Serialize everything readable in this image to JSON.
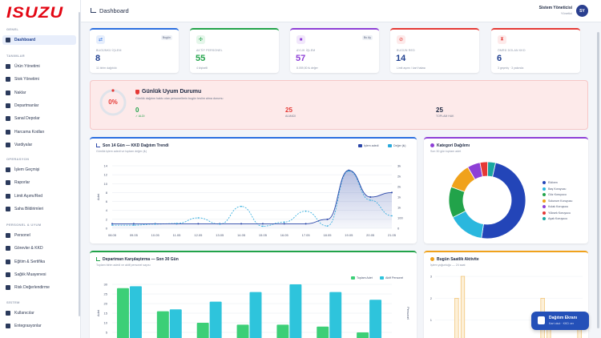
{
  "brand": {
    "logo": "ISUZU"
  },
  "header": {
    "title": "Dashboard",
    "user_name": "Sistem Yöneticisi",
    "user_role": "Yönetici",
    "avatar": "SY"
  },
  "sidebar": {
    "sections": [
      {
        "title": "GENEL",
        "items": [
          {
            "label": "Dashboard",
            "icon": "dashboard-icon",
            "active": true
          }
        ]
      },
      {
        "title": "TANIMLAR",
        "items": [
          {
            "label": "Ürün Yönetimi",
            "icon": "box-icon"
          },
          {
            "label": "Stok Yönetimi",
            "icon": "boxes-icon"
          },
          {
            "label": "Naklar",
            "icon": "list-icon"
          },
          {
            "label": "Departmanlar",
            "icon": "building-icon"
          },
          {
            "label": "Sanal Depolar",
            "icon": "warehouse-icon"
          },
          {
            "label": "Harcama Kodları",
            "icon": "code-icon"
          },
          {
            "label": "Vardiyalar",
            "icon": "clock-icon"
          }
        ]
      },
      {
        "title": "OPERASYON",
        "items": [
          {
            "label": "İşlem Geçmişi",
            "icon": "history-icon"
          },
          {
            "label": "Raporlar",
            "icon": "report-icon"
          },
          {
            "label": "Limit Aşımı/Red",
            "icon": "alert-icon"
          },
          {
            "label": "Saha Bildirimleri",
            "icon": "bell-icon"
          }
        ]
      },
      {
        "title": "PERSONEL & UYUM",
        "items": [
          {
            "label": "Personel",
            "icon": "users-icon"
          },
          {
            "label": "Görevler & KKD",
            "icon": "tasks-icon"
          },
          {
            "label": "Eğitim & Sertifika",
            "icon": "certificate-icon"
          },
          {
            "label": "Sağlık Muayenesi",
            "icon": "health-icon"
          },
          {
            "label": "Risk Değerlendirme",
            "icon": "warning-icon"
          }
        ]
      },
      {
        "title": "SİSTEM",
        "items": [
          {
            "label": "Kullanıcılar",
            "icon": "user-icon"
          },
          {
            "label": "Entegrasyonlar",
            "icon": "plug-icon"
          }
        ]
      }
    ]
  },
  "stats": [
    {
      "label": "BUGÜNKÜ İŞLEM",
      "value": "8",
      "sub": "11 birim dağıtıldı",
      "badge": "Bugün",
      "color": "#2b6fe0",
      "icon": "swap-icon",
      "glyph": "⇄",
      "icon_bg": "#e6eefc"
    },
    {
      "label": "AKTİF PERSONEL",
      "value": "55",
      "sub": "4 kişiselli",
      "badge": "",
      "color": "#22a34a",
      "icon": "users-icon",
      "glyph": "✣",
      "icon_bg": "#e5f6ea"
    },
    {
      "label": "AYLIK İŞLEM",
      "value": "57",
      "sub": "8.059,50 ₺ değer",
      "badge": "Bu Ay",
      "color": "#8e3fd6",
      "icon": "calendar-icon",
      "glyph": "■",
      "icon_bg": "#f1e7fb"
    },
    {
      "label": "BUGÜN RED",
      "value": "14",
      "sub": "Limit aşımı / kart hatası",
      "badge": "",
      "color": "#e53935",
      "icon": "ban-icon",
      "glyph": "⊘",
      "icon_bg": "#fdeaea"
    },
    {
      "label": "ÖMRÜ DOLAN KKD",
      "value": "6",
      "sub": "3 geçmiş · 3 yakında",
      "badge": "",
      "color": "#e53935",
      "icon": "hourglass-icon",
      "glyph": "⧗",
      "icon_bg": "#fdeaea"
    }
  ],
  "compliance": {
    "title": "Günlük Uyum Durumu",
    "subtitle": "Günlük dağıtım hakkı olan personellerin bugün teslim alma durumu",
    "percent": "0%",
    "percent_value": 0,
    "alinan_value": "0",
    "alinan_label": "✓ ALDI",
    "almadi_value": "25",
    "almadi_label": "ALMADI",
    "toplam_value": "25",
    "toplam_label": "TOPLAM HAK"
  },
  "trend": {
    "title": "Son 14 Gün — KKD Dağıtım Trendi",
    "subtitle": "Günlük işlem adedi ve toplam değer (₺)",
    "legend_islem": "İşlem adedi",
    "legend_deger": "Değer (₺)",
    "ylabel": "Adet"
  },
  "category": {
    "title": "Kategori Dağılımı",
    "subtitle": "Son 30 gün toplam adet"
  },
  "department": {
    "title": "Departman Karşılaştırma — Son 30 Gün",
    "subtitle": "Toplam birim adedi ve aktif personel sayısı",
    "legend_birim": "Toplam Adet",
    "legend_personel": "Aktif Personel",
    "ylabel": "Adet",
    "y2label": "Personel"
  },
  "hourly": {
    "title": "Bugün Saatlik Aktivite",
    "subtitle": "İşlem yoğunluğu — 24 saat"
  },
  "dist_button": {
    "title": "Dağıtım Ekranı",
    "sub": "Kart okut · KKD ver"
  },
  "chart_data": [
    {
      "type": "line",
      "name": "trend",
      "x": [
        "08.05",
        "09.05",
        "10.05",
        "11.05",
        "12.05",
        "13.05",
        "14.05",
        "15.05",
        "16.05",
        "17.05",
        "18.05",
        "19.05",
        "20.05",
        "21.05"
      ],
      "y_left_ticks": [
        "0",
        "2",
        "4",
        "6",
        "8",
        "10",
        "12",
        "14"
      ],
      "y_right_ticks": [
        "0",
        "100",
        "1k",
        "1k",
        "2k",
        "2k",
        "3k"
      ],
      "series": [
        {
          "name": "İşlem adedi",
          "axis": "left",
          "color": "#2a46a8",
          "values": [
            1,
            1,
            1,
            1,
            1,
            1,
            1,
            1,
            1,
            1,
            2,
            13,
            7,
            8
          ]
        },
        {
          "name": "Değer (₺)",
          "axis": "right",
          "color": "#29a9dc",
          "values": [
            150,
            150,
            200,
            230,
            500,
            200,
            1050,
            100,
            300,
            820,
            110,
            2750,
            1350,
            600
          ]
        }
      ],
      "ylim_left": [
        0,
        14
      ],
      "ylim_right": [
        0,
        3000
      ]
    },
    {
      "type": "pie",
      "name": "category",
      "slices": [
        {
          "label": "Eldiven",
          "value": 45,
          "color": "#2345b8"
        },
        {
          "label": "Baş Koruyucu",
          "value": 14,
          "color": "#2ab7de"
        },
        {
          "label": "Göz Koruyucu",
          "value": 12,
          "color": "#22a34a"
        },
        {
          "label": "Solunum Koruyucu",
          "value": 10,
          "color": "#f0a21c"
        },
        {
          "label": "Kulak Koruyucu",
          "value": 5,
          "color": "#8e3fd6"
        },
        {
          "label": "Yüksek Koruyucu",
          "value": 3,
          "color": "#e53935"
        },
        {
          "label": "Ayak Koruyucu",
          "value": 3,
          "color": "#1aa7a0"
        }
      ]
    },
    {
      "type": "bar",
      "name": "department",
      "y_ticks": [
        "0",
        "5",
        "10",
        "15",
        "20",
        "25",
        "30"
      ],
      "series": [
        {
          "name": "Toplam Adet",
          "color": "#3ccf77",
          "values": [
            28,
            16,
            10,
            9,
            9,
            8,
            5
          ]
        },
        {
          "name": "Aktif Personel",
          "color": "#2ec4dc",
          "values": [
            29,
            17,
            21,
            26,
            30,
            26,
            22
          ]
        }
      ],
      "ylim": [
        0,
        30
      ]
    },
    {
      "type": "bar",
      "name": "hourly",
      "y_ticks": [
        "0",
        "1",
        "2",
        "3"
      ],
      "values": [
        0,
        0,
        0,
        2,
        3,
        0,
        0,
        0,
        0,
        0,
        0,
        0,
        0,
        0,
        0,
        0,
        0,
        2,
        1,
        0,
        0,
        0,
        0,
        1.3
      ],
      "color": "#f5c97a",
      "ylim": [
        0,
        3
      ]
    }
  ]
}
